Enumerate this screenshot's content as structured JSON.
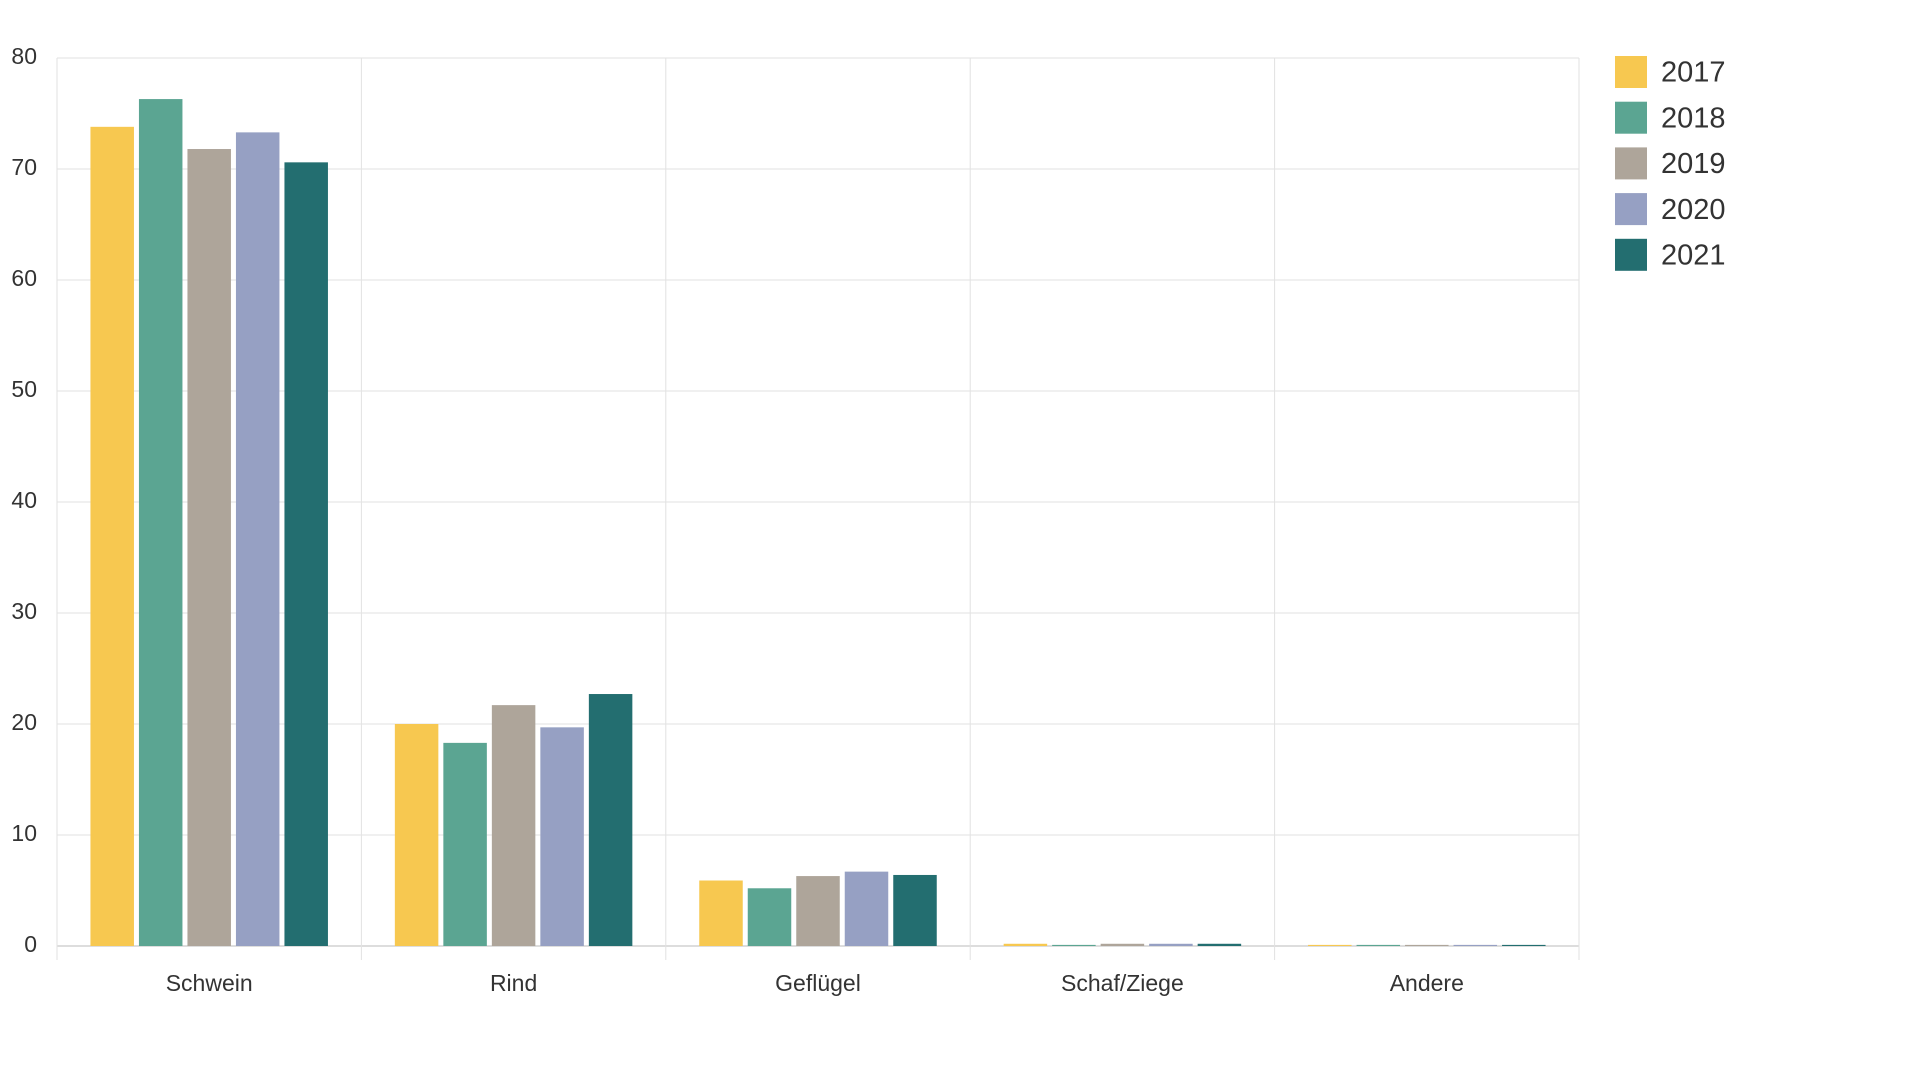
{
  "chart_data": {
    "type": "bar",
    "categories": [
      "Schwein",
      "Rind",
      "Geflügel",
      "Schaf/Ziege",
      "Andere"
    ],
    "series": [
      {
        "name": "2017",
        "color": "#f7c850",
        "values": [
          73.8,
          20.0,
          5.9,
          0.2,
          0.1
        ]
      },
      {
        "name": "2018",
        "color": "#5ba592",
        "values": [
          76.3,
          18.3,
          5.2,
          0.1,
          0.1
        ]
      },
      {
        "name": "2019",
        "color": "#aea59a",
        "values": [
          71.8,
          21.7,
          6.3,
          0.2,
          0.1
        ]
      },
      {
        "name": "2020",
        "color": "#96a0c3",
        "values": [
          73.3,
          19.7,
          6.7,
          0.2,
          0.1
        ]
      },
      {
        "name": "2021",
        "color": "#236e70",
        "values": [
          70.6,
          22.7,
          6.4,
          0.2,
          0.1
        ]
      }
    ],
    "ylim": [
      0,
      80
    ],
    "yticks": [
      0,
      10,
      20,
      30,
      40,
      50,
      60,
      70,
      80
    ],
    "grid": true,
    "legend": "right"
  }
}
